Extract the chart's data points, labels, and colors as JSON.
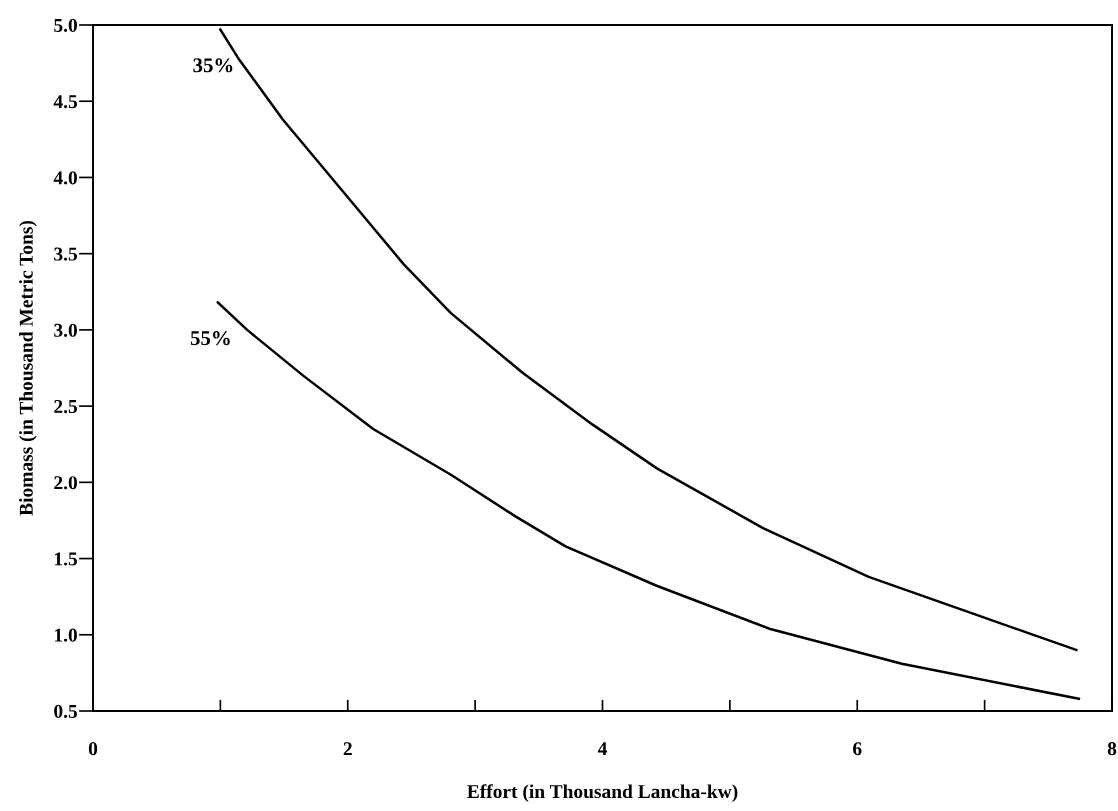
{
  "chart_data": {
    "type": "line",
    "xlabel": "Effort (in Thousand Lancha-kw)",
    "ylabel": "Biomass (in Thousand Metric Tons)",
    "xlim": [
      0,
      8
    ],
    "ylim": [
      0.5,
      5.0
    ],
    "xticks": [
      0,
      {
        "value": 1,
        "label": null
      },
      2,
      {
        "value": 3,
        "label": null
      },
      4,
      {
        "value": 5,
        "label": null
      },
      6,
      {
        "value": 7,
        "label": null
      },
      8
    ],
    "yticks": [
      0.5,
      {
        "value": 1,
        "label": "1.0"
      },
      1.5,
      {
        "value": 2,
        "label": "2.0"
      },
      2.5,
      {
        "value": 3,
        "label": "3.0"
      },
      3.5,
      {
        "value": 4,
        "label": "4.0"
      },
      4.5,
      {
        "value": 5,
        "label": "5.0"
      }
    ],
    "grid": false,
    "legend": false,
    "marker": "none",
    "line_style": "solid",
    "series": [
      {
        "color": "#000000",
        "x": [
          1.0,
          1.15,
          1.49,
          2.01,
          2.44,
          2.81,
          3.37,
          3.92,
          4.43,
          5.26,
          6.09,
          6.87,
          7.72
        ],
        "values": [
          4.97,
          4.77,
          4.38,
          3.86,
          3.43,
          3.11,
          2.72,
          2.38,
          2.09,
          1.7,
          1.38,
          1.15,
          0.9
        ]
      },
      {
        "color": "#000000",
        "x": [
          0.98,
          1.21,
          1.65,
          2.2,
          2.81,
          3.31,
          3.71,
          4.43,
          5.31,
          6.35,
          7.74
        ],
        "values": [
          3.18,
          3.0,
          2.7,
          2.35,
          2.05,
          1.78,
          1.58,
          1.32,
          1.04,
          0.81,
          0.58
        ]
      }
    ],
    "annotations": [
      "35%",
      "55%"
    ]
  }
}
